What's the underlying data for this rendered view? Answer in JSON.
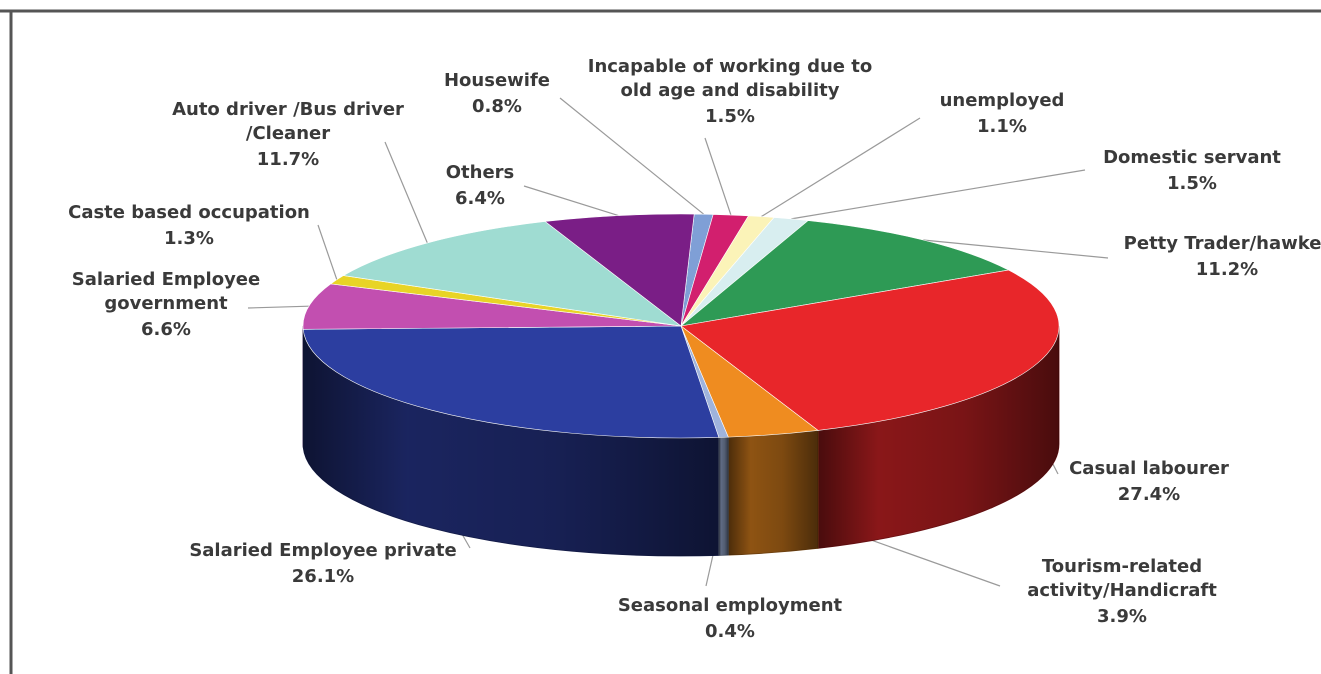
{
  "chart_data": {
    "type": "pie",
    "title": "",
    "slices": [
      {
        "label_lines": [
          "Housewife"
        ],
        "value_text": "0.8%",
        "value": 0.8,
        "color": "#7f9fd6"
      },
      {
        "label_lines": [
          "Incapable of working due to",
          "old age and disability"
        ],
        "value_text": "1.5%",
        "value": 1.5,
        "color": "#d21f6e"
      },
      {
        "label_lines": [
          "unemployed"
        ],
        "value_text": "1.1%",
        "value": 1.1,
        "color": "#fbf3b8"
      },
      {
        "label_lines": [
          "Domestic servant"
        ],
        "value_text": "1.5%",
        "value": 1.5,
        "color": "#d8eef0"
      },
      {
        "label_lines": [
          "Petty Trader/hawker"
        ],
        "value_text": "11.2%",
        "value": 11.2,
        "color": "#2e9a55"
      },
      {
        "label_lines": [
          "Casual labourer"
        ],
        "value_text": "27.4%",
        "value": 27.4,
        "color": "#e8262a"
      },
      {
        "label_lines": [
          "Tourism-related",
          "activity/Handicraft"
        ],
        "value_text": "3.9%",
        "value": 3.9,
        "color": "#ef8c20"
      },
      {
        "label_lines": [
          "Seasonal employment"
        ],
        "value_text": "0.4%",
        "value": 0.4,
        "color": "#9fb3dc"
      },
      {
        "label_lines": [
          "Salaried Employee private"
        ],
        "value_text": "26.1%",
        "value": 26.1,
        "color": "#2c3ea0"
      },
      {
        "label_lines": [
          "Salaried Employee",
          "government"
        ],
        "value_text": "6.6%",
        "value": 6.6,
        "color": "#c24fb0"
      },
      {
        "label_lines": [
          "Caste based occupation"
        ],
        "value_text": "1.3%",
        "value": 1.3,
        "color": "#e8d426"
      },
      {
        "label_lines": [
          "Auto driver /Bus driver",
          "/Cleaner"
        ],
        "value_text": "11.7%",
        "value": 11.7,
        "color": "#9fdcd2"
      },
      {
        "label_lines": [
          "Others"
        ],
        "value_text": "6.4%",
        "value": 6.4,
        "color": "#7a1e86"
      }
    ]
  }
}
